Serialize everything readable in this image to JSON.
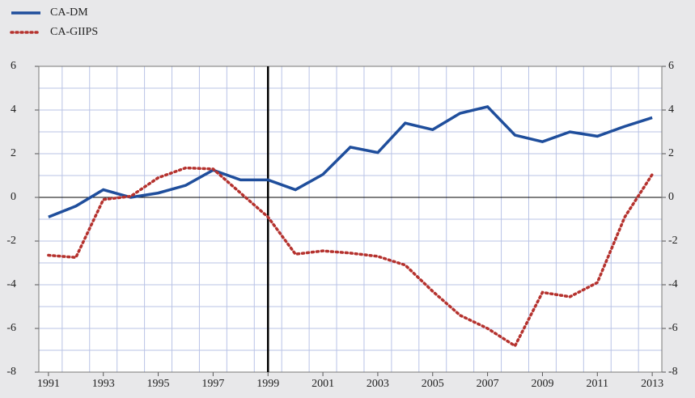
{
  "chart_data": {
    "type": "line",
    "x": [
      1991,
      1992,
      1993,
      1994,
      1995,
      1996,
      1997,
      1998,
      1999,
      2000,
      2001,
      2002,
      2003,
      2004,
      2005,
      2006,
      2007,
      2008,
      2009,
      2010,
      2011,
      2012,
      2013
    ],
    "series": [
      {
        "name": "CA-DM",
        "color": "#1f4e9c",
        "style": "solid",
        "values": [
          -0.9,
          -0.4,
          0.35,
          0.0,
          0.2,
          0.55,
          1.25,
          0.8,
          0.8,
          0.35,
          1.05,
          2.3,
          2.05,
          3.4,
          3.1,
          3.85,
          4.15,
          2.85,
          2.55,
          3.0,
          2.8,
          3.25,
          3.65
        ]
      },
      {
        "name": "CA-GIIPS",
        "color": "#b5322e",
        "style": "dotted",
        "values": [
          -2.65,
          -2.75,
          -0.1,
          0.05,
          0.9,
          1.35,
          1.3,
          0.2,
          -0.9,
          -2.6,
          -2.45,
          -2.55,
          -2.7,
          -3.1,
          -4.3,
          -5.4,
          -6.0,
          -6.8,
          -4.35,
          -4.55,
          -3.9,
          -0.9,
          1.05
        ]
      }
    ],
    "xlim": [
      1990.65,
      2013.35
    ],
    "xticks": [
      1991,
      1993,
      1995,
      1997,
      1999,
      2001,
      2003,
      2005,
      2007,
      2009,
      2011,
      2013
    ],
    "xgrid": [
      1991.5,
      1992.5,
      1993.5,
      1994.5,
      1995.5,
      1996.5,
      1997.5,
      1998.5,
      1999.5,
      2000.5,
      2001.5,
      2002.5,
      2003.5,
      2004.5,
      2005.5,
      2006.5,
      2007.5,
      2008.5,
      2009.5,
      2010.5,
      2011.5,
      2012.5
    ],
    "ylim": [
      -8,
      6
    ],
    "yticks": [
      -8,
      -6,
      -4,
      -2,
      0,
      2,
      4,
      6
    ],
    "ygrid": [
      -7,
      -5,
      -3,
      -1,
      1,
      3,
      5
    ],
    "vline": 1999,
    "grid": true,
    "legend": "top-left"
  }
}
